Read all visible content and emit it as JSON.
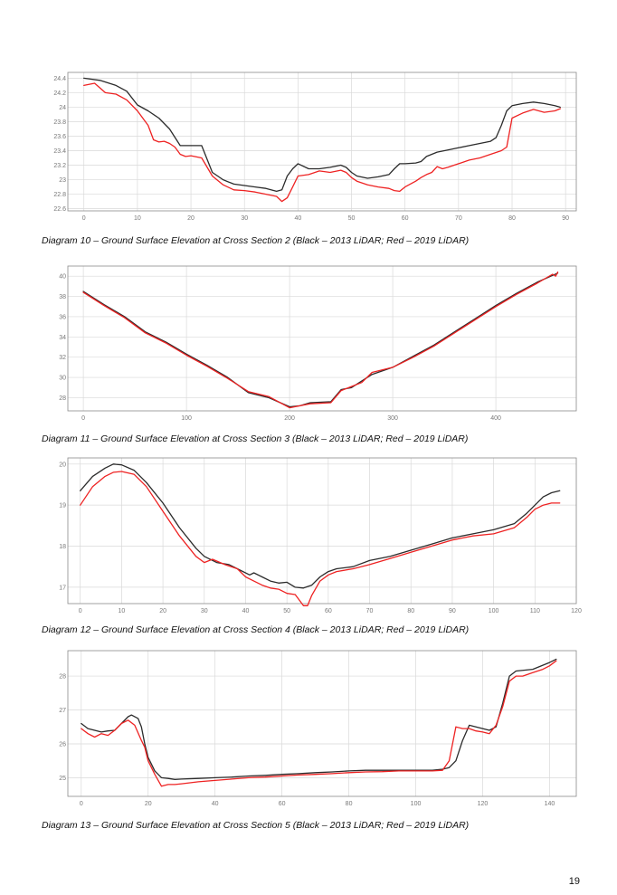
{
  "page": {
    "number": "19"
  },
  "colors": {
    "lidar_2013": "#2b2b2b",
    "lidar_2019": "#ee2222",
    "grid": "#d9d9d9",
    "frame": "#8a8a8a"
  },
  "chart_data": [
    {
      "type": "line",
      "caption": "Diagram 10 – Ground Surface Elevation at Cross Section 2 (Black – 2013 LiDAR; Red – 2019 LiDAR)",
      "xlim": [
        -3,
        92
      ],
      "ylim": [
        22.57,
        24.48
      ],
      "xticks": [
        0,
        10,
        20,
        30,
        40,
        50,
        60,
        70,
        80,
        90
      ],
      "yticks": [
        22.6,
        22.8,
        23,
        23.2,
        23.4,
        23.6,
        23.8,
        24,
        24.2,
        24.4
      ],
      "ytick_labels": [
        "22.6",
        "22.8",
        "23",
        "23.2",
        "23.4",
        "23.6",
        "23.8",
        "24",
        "24.2",
        "24.4"
      ],
      "grid": true,
      "series": [
        {
          "color": "#2b2b2b",
          "x": [
            0,
            3,
            6,
            8,
            10,
            12,
            14,
            16,
            18,
            20,
            22,
            24,
            26,
            28,
            30,
            32,
            34,
            36,
            37,
            38,
            39,
            40,
            42,
            44,
            46,
            48,
            49,
            50,
            51,
            53,
            55,
            57,
            58,
            59,
            60,
            62,
            63,
            64,
            66,
            68,
            70,
            72,
            74,
            76,
            77,
            78,
            79,
            80,
            82,
            84,
            86,
            88,
            89
          ],
          "y": [
            24.4,
            24.37,
            24.3,
            24.22,
            24.03,
            23.95,
            23.85,
            23.7,
            23.47,
            23.47,
            23.47,
            23.1,
            23.0,
            22.94,
            22.92,
            22.9,
            22.88,
            22.84,
            22.86,
            23.05,
            23.15,
            23.22,
            23.15,
            23.15,
            23.17,
            23.2,
            23.17,
            23.1,
            23.05,
            23.02,
            23.04,
            23.07,
            23.15,
            23.22,
            23.22,
            23.23,
            23.25,
            23.32,
            23.38,
            23.41,
            23.44,
            23.47,
            23.5,
            23.53,
            23.58,
            23.75,
            23.95,
            24.02,
            24.05,
            24.07,
            24.05,
            24.02,
            24.0
          ]
        },
        {
          "color": "#ee2222",
          "x": [
            0,
            2,
            4,
            6,
            8,
            10,
            12,
            13,
            14,
            15,
            16,
            17,
            18,
            19,
            20,
            22,
            24,
            26,
            28,
            30,
            32,
            34,
            36,
            37,
            38,
            39,
            40,
            42,
            44,
            46,
            48,
            49,
            50,
            51,
            53,
            55,
            57,
            58,
            59,
            60,
            62,
            63,
            64,
            65,
            66,
            67,
            68,
            70,
            72,
            74,
            76,
            78,
            79,
            80,
            82,
            84,
            85,
            86,
            88,
            89
          ],
          "y": [
            24.3,
            24.33,
            24.2,
            24.18,
            24.1,
            23.95,
            23.75,
            23.55,
            23.52,
            23.53,
            23.5,
            23.45,
            23.35,
            23.32,
            23.33,
            23.3,
            23.05,
            22.93,
            22.86,
            22.85,
            22.83,
            22.8,
            22.77,
            22.7,
            22.75,
            22.9,
            23.05,
            23.07,
            23.12,
            23.1,
            23.13,
            23.1,
            23.03,
            22.98,
            22.93,
            22.9,
            22.88,
            22.85,
            22.84,
            22.9,
            22.98,
            23.03,
            23.07,
            23.1,
            23.18,
            23.15,
            23.17,
            23.22,
            23.27,
            23.3,
            23.35,
            23.4,
            23.45,
            23.85,
            23.92,
            23.97,
            23.95,
            23.93,
            23.95,
            23.98
          ]
        }
      ]
    },
    {
      "type": "line",
      "caption": "Diagram 11 – Ground Surface Elevation at Cross Section 3 (Black – 2013 LiDAR; Red – 2019 LiDAR)",
      "xlim": [
        -15,
        478
      ],
      "ylim": [
        26.7,
        41.0
      ],
      "xticks": [
        0,
        100,
        200,
        300,
        400
      ],
      "yticks": [
        28,
        30,
        32,
        34,
        36,
        38,
        40
      ],
      "ytick_labels": [
        "28",
        "30",
        "32",
        "34",
        "36",
        "38",
        "40"
      ],
      "grid": true,
      "series": [
        {
          "color": "#2b2b2b",
          "x": [
            0,
            20,
            40,
            60,
            80,
            100,
            120,
            140,
            160,
            180,
            200,
            210,
            220,
            240,
            250,
            260,
            280,
            300,
            320,
            340,
            360,
            380,
            400,
            420,
            440,
            460
          ],
          "y": [
            38.5,
            37.2,
            36.0,
            34.5,
            33.5,
            32.3,
            31.2,
            30.0,
            28.5,
            28.0,
            27.1,
            27.2,
            27.5,
            27.6,
            28.8,
            29.0,
            30.3,
            31.0,
            32.1,
            33.2,
            34.5,
            35.8,
            37.1,
            38.3,
            39.4,
            40.3
          ]
        },
        {
          "color": "#ee2222",
          "x": [
            0,
            20,
            40,
            60,
            80,
            100,
            120,
            140,
            160,
            180,
            200,
            210,
            220,
            240,
            250,
            260,
            270,
            280,
            300,
            320,
            340,
            360,
            380,
            400,
            420,
            440,
            455,
            458,
            460
          ],
          "y": [
            38.4,
            37.1,
            35.9,
            34.4,
            33.4,
            32.2,
            31.1,
            29.9,
            28.6,
            28.1,
            27.0,
            27.2,
            27.4,
            27.5,
            28.7,
            29.1,
            29.5,
            30.5,
            31.0,
            32.0,
            33.1,
            34.4,
            35.7,
            37.0,
            38.2,
            39.3,
            40.2,
            40.0,
            40.4
          ]
        }
      ]
    },
    {
      "type": "line",
      "caption": "Diagram 12 – Ground Surface Elevation at Cross Section 4 (Black – 2013 LiDAR; Red – 2019 LiDAR)",
      "xlim": [
        -3,
        120
      ],
      "ylim": [
        16.6,
        20.15
      ],
      "xticks": [
        0,
        10,
        20,
        30,
        40,
        50,
        60,
        70,
        80,
        90,
        100,
        110,
        120
      ],
      "yticks": [
        17,
        18,
        19,
        20
      ],
      "ytick_labels": [
        "17",
        "18",
        "19",
        "20"
      ],
      "grid": true,
      "series": [
        {
          "color": "#2b2b2b",
          "x": [
            0,
            3,
            6,
            8,
            10,
            13,
            16,
            20,
            24,
            28,
            30,
            33,
            36,
            38,
            41,
            42,
            44,
            46,
            48,
            50,
            52,
            54,
            56,
            58,
            60,
            62,
            66,
            70,
            75,
            80,
            85,
            90,
            95,
            100,
            105,
            108,
            110,
            112,
            114,
            116
          ],
          "y": [
            19.35,
            19.7,
            19.9,
            20.0,
            19.98,
            19.85,
            19.55,
            19.05,
            18.45,
            17.95,
            17.75,
            17.6,
            17.55,
            17.45,
            17.3,
            17.35,
            17.25,
            17.15,
            17.1,
            17.12,
            17.0,
            16.98,
            17.05,
            17.25,
            17.38,
            17.45,
            17.5,
            17.65,
            17.75,
            17.9,
            18.05,
            18.2,
            18.3,
            18.4,
            18.55,
            18.8,
            19.0,
            19.2,
            19.3,
            19.35
          ]
        },
        {
          "color": "#ee2222",
          "x": [
            0,
            3,
            6,
            8,
            10,
            13,
            16,
            20,
            24,
            28,
            30,
            32,
            35,
            38,
            40,
            42,
            44,
            46,
            48,
            50,
            52,
            54,
            55,
            56,
            58,
            60,
            62,
            66,
            70,
            75,
            80,
            85,
            90,
            95,
            100,
            105,
            108,
            110,
            112,
            114,
            116
          ],
          "y": [
            19.0,
            19.45,
            19.7,
            19.8,
            19.82,
            19.75,
            19.45,
            18.85,
            18.25,
            17.75,
            17.6,
            17.68,
            17.55,
            17.45,
            17.25,
            17.15,
            17.05,
            16.98,
            16.95,
            16.85,
            16.82,
            16.55,
            16.55,
            16.8,
            17.15,
            17.3,
            17.38,
            17.45,
            17.55,
            17.7,
            17.85,
            18.0,
            18.15,
            18.25,
            18.3,
            18.45,
            18.7,
            18.9,
            19.0,
            19.05,
            19.05
          ]
        }
      ]
    },
    {
      "type": "line",
      "caption": "Diagram 13 – Ground Surface Elevation at Cross Section 5 (Black – 2013 LiDAR; Red – 2019 LiDAR)",
      "xlim": [
        -4,
        148
      ],
      "ylim": [
        24.45,
        28.75
      ],
      "xticks": [
        0,
        20,
        40,
        60,
        80,
        100,
        120,
        140
      ],
      "yticks": [
        25,
        26,
        27,
        28
      ],
      "ytick_labels": [
        "25",
        "26",
        "27",
        "28"
      ],
      "grid": true,
      "series": [
        {
          "color": "#2b2b2b",
          "x": [
            0,
            2,
            4,
            6,
            8,
            10,
            12,
            14,
            15,
            17,
            18,
            19,
            20,
            22,
            24,
            26,
            28,
            30,
            35,
            40,
            45,
            50,
            55,
            60,
            65,
            70,
            75,
            80,
            85,
            90,
            95,
            100,
            105,
            108,
            110,
            112,
            114,
            116,
            118,
            120,
            122,
            124,
            126,
            128,
            130,
            135,
            140,
            142
          ],
          "y": [
            26.6,
            26.45,
            26.4,
            26.35,
            26.38,
            26.4,
            26.6,
            26.8,
            26.85,
            26.75,
            26.5,
            26.0,
            25.6,
            25.2,
            25.0,
            24.98,
            24.95,
            24.96,
            24.98,
            25.0,
            25.02,
            25.05,
            25.07,
            25.1,
            25.12,
            25.15,
            25.17,
            25.2,
            25.22,
            25.22,
            25.22,
            25.22,
            25.22,
            25.25,
            25.3,
            25.5,
            26.1,
            26.55,
            26.5,
            26.45,
            26.4,
            26.5,
            27.2,
            28.0,
            28.15,
            28.2,
            28.4,
            28.5
          ]
        },
        {
          "color": "#ee2222",
          "x": [
            0,
            2,
            4,
            6,
            8,
            10,
            12,
            14,
            16,
            18,
            19,
            20,
            22,
            24,
            26,
            28,
            30,
            35,
            40,
            45,
            50,
            55,
            60,
            65,
            70,
            75,
            80,
            85,
            90,
            95,
            100,
            105,
            108,
            110,
            112,
            114,
            116,
            118,
            120,
            122,
            124,
            126,
            128,
            130,
            132,
            135,
            138,
            140,
            142
          ],
          "y": [
            26.45,
            26.3,
            26.2,
            26.3,
            26.25,
            26.4,
            26.6,
            26.7,
            26.55,
            26.1,
            25.9,
            25.5,
            25.1,
            24.75,
            24.8,
            24.8,
            24.82,
            24.88,
            24.92,
            24.96,
            25.0,
            25.02,
            25.05,
            25.08,
            25.1,
            25.12,
            25.15,
            25.17,
            25.18,
            25.2,
            25.2,
            25.2,
            25.22,
            25.5,
            26.5,
            26.45,
            26.45,
            26.38,
            26.35,
            26.3,
            26.55,
            27.1,
            27.85,
            28.0,
            28.0,
            28.1,
            28.2,
            28.3,
            28.45
          ]
        }
      ]
    }
  ]
}
